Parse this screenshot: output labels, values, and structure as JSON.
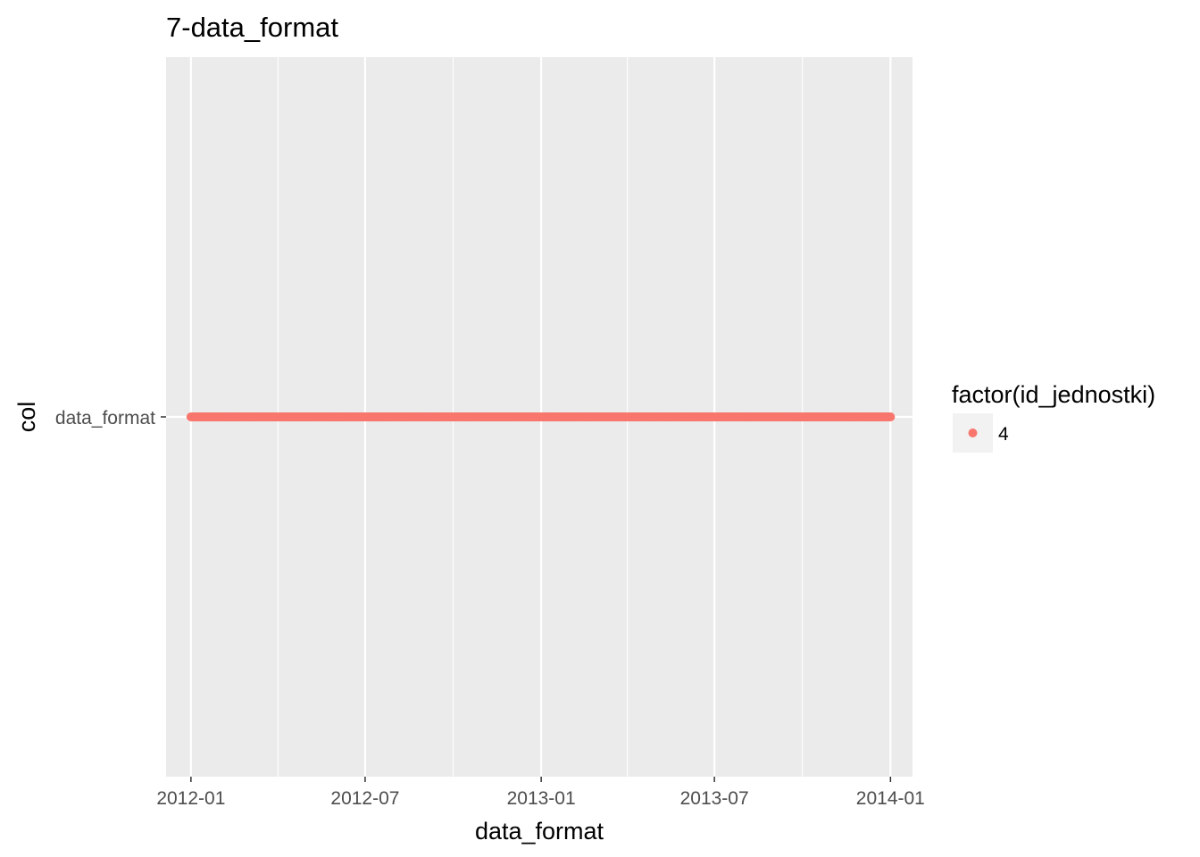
{
  "chart_data": {
    "type": "scatter",
    "title": "7-data_format",
    "xlabel": "data_format",
    "ylabel": "col",
    "x_ticks": [
      "2012-01",
      "2012-07",
      "2013-01",
      "2013-07",
      "2014-01"
    ],
    "x_minor_ticks": [
      "2012-04",
      "2012-10",
      "2013-04",
      "2013-10"
    ],
    "y_categories": [
      "data_format"
    ],
    "xlim": [
      "2011-12-06",
      "2014-01-24"
    ],
    "series": [
      {
        "name": "4",
        "category": "data_format",
        "x_start": "2012-01-01",
        "x_end": "2014-01-01",
        "step_days": 1,
        "color": "#F8766D"
      }
    ],
    "legend": {
      "title": "factor(id_jednostki)",
      "position": "right",
      "entries": [
        {
          "label": "4",
          "color": "#F8766D"
        }
      ]
    },
    "panel_background": "#EBEBEB",
    "grid_color": "#FFFFFF",
    "grid": true
  }
}
